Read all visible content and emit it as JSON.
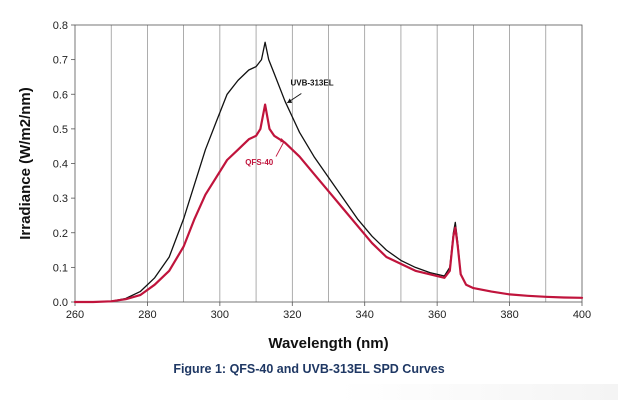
{
  "caption": "Figure 1: QFS-40 and UVB-313EL SPD Curves",
  "chart_data": {
    "type": "line",
    "xlabel": "Wavelength (nm)",
    "ylabel": "Irradiance (W/m2/nm)",
    "xlim": [
      260,
      400
    ],
    "ylim": [
      0,
      0.8
    ],
    "x_ticks": [
      "260",
      "280",
      "300",
      "320",
      "340",
      "360",
      "380",
      "400"
    ],
    "y_ticks": [
      "0.0",
      "0.1",
      "0.2",
      "0.3",
      "0.4",
      "0.5",
      "0.6",
      "0.7",
      "0.8"
    ],
    "grid": "vertical",
    "legend": "none",
    "annotations": [
      {
        "text": "UVB-313EL",
        "series": "UVB-313EL",
        "color": "#111111"
      },
      {
        "text": "QFS-40",
        "series": "QFS-40",
        "color": "#c0143c"
      }
    ],
    "series": [
      {
        "name": "UVB-313EL",
        "color": "#111111",
        "points": [
          [
            260,
            0
          ],
          [
            265,
            0
          ],
          [
            270,
            0.002
          ],
          [
            274,
            0.01
          ],
          [
            278,
            0.03
          ],
          [
            282,
            0.07
          ],
          [
            286,
            0.13
          ],
          [
            290,
            0.24
          ],
          [
            293,
            0.34
          ],
          [
            296,
            0.44
          ],
          [
            299,
            0.52
          ],
          [
            302,
            0.6
          ],
          [
            305,
            0.64
          ],
          [
            308,
            0.67
          ],
          [
            310,
            0.68
          ],
          [
            311.5,
            0.7
          ],
          [
            312.5,
            0.75
          ],
          [
            313.5,
            0.7
          ],
          [
            315,
            0.66
          ],
          [
            318,
            0.58
          ],
          [
            322,
            0.49
          ],
          [
            326,
            0.42
          ],
          [
            330,
            0.36
          ],
          [
            334,
            0.3
          ],
          [
            338,
            0.24
          ],
          [
            342,
            0.19
          ],
          [
            346,
            0.15
          ],
          [
            350,
            0.12
          ],
          [
            354,
            0.1
          ],
          [
            358,
            0.085
          ],
          [
            362,
            0.075
          ],
          [
            363.5,
            0.1
          ],
          [
            364.5,
            0.2
          ],
          [
            365,
            0.23
          ],
          [
            365.7,
            0.17
          ],
          [
            366.5,
            0.08
          ],
          [
            368,
            0.05
          ],
          [
            370,
            0.04
          ],
          [
            375,
            0.03
          ],
          [
            380,
            0.022
          ],
          [
            385,
            0.018
          ],
          [
            390,
            0.015
          ],
          [
            395,
            0.013
          ],
          [
            400,
            0.012
          ]
        ]
      },
      {
        "name": "QFS-40",
        "color": "#c0143c",
        "points": [
          [
            260,
            0
          ],
          [
            265,
            0
          ],
          [
            270,
            0.002
          ],
          [
            274,
            0.008
          ],
          [
            278,
            0.02
          ],
          [
            282,
            0.05
          ],
          [
            286,
            0.09
          ],
          [
            290,
            0.16
          ],
          [
            293,
            0.24
          ],
          [
            296,
            0.31
          ],
          [
            299,
            0.36
          ],
          [
            302,
            0.41
          ],
          [
            305,
            0.44
          ],
          [
            308,
            0.47
          ],
          [
            310,
            0.48
          ],
          [
            311.2,
            0.5
          ],
          [
            312.5,
            0.57
          ],
          [
            313.7,
            0.5
          ],
          [
            315,
            0.48
          ],
          [
            318,
            0.46
          ],
          [
            322,
            0.42
          ],
          [
            326,
            0.37
          ],
          [
            330,
            0.32
          ],
          [
            334,
            0.27
          ],
          [
            338,
            0.22
          ],
          [
            342,
            0.17
          ],
          [
            346,
            0.13
          ],
          [
            350,
            0.11
          ],
          [
            354,
            0.09
          ],
          [
            358,
            0.08
          ],
          [
            362,
            0.07
          ],
          [
            363.5,
            0.09
          ],
          [
            364.5,
            0.19
          ],
          [
            365,
            0.215
          ],
          [
            365.7,
            0.16
          ],
          [
            366.5,
            0.08
          ],
          [
            368,
            0.05
          ],
          [
            370,
            0.04
          ],
          [
            375,
            0.03
          ],
          [
            380,
            0.022
          ],
          [
            385,
            0.018
          ],
          [
            390,
            0.015
          ],
          [
            395,
            0.013
          ],
          [
            400,
            0.012
          ]
        ]
      }
    ]
  }
}
